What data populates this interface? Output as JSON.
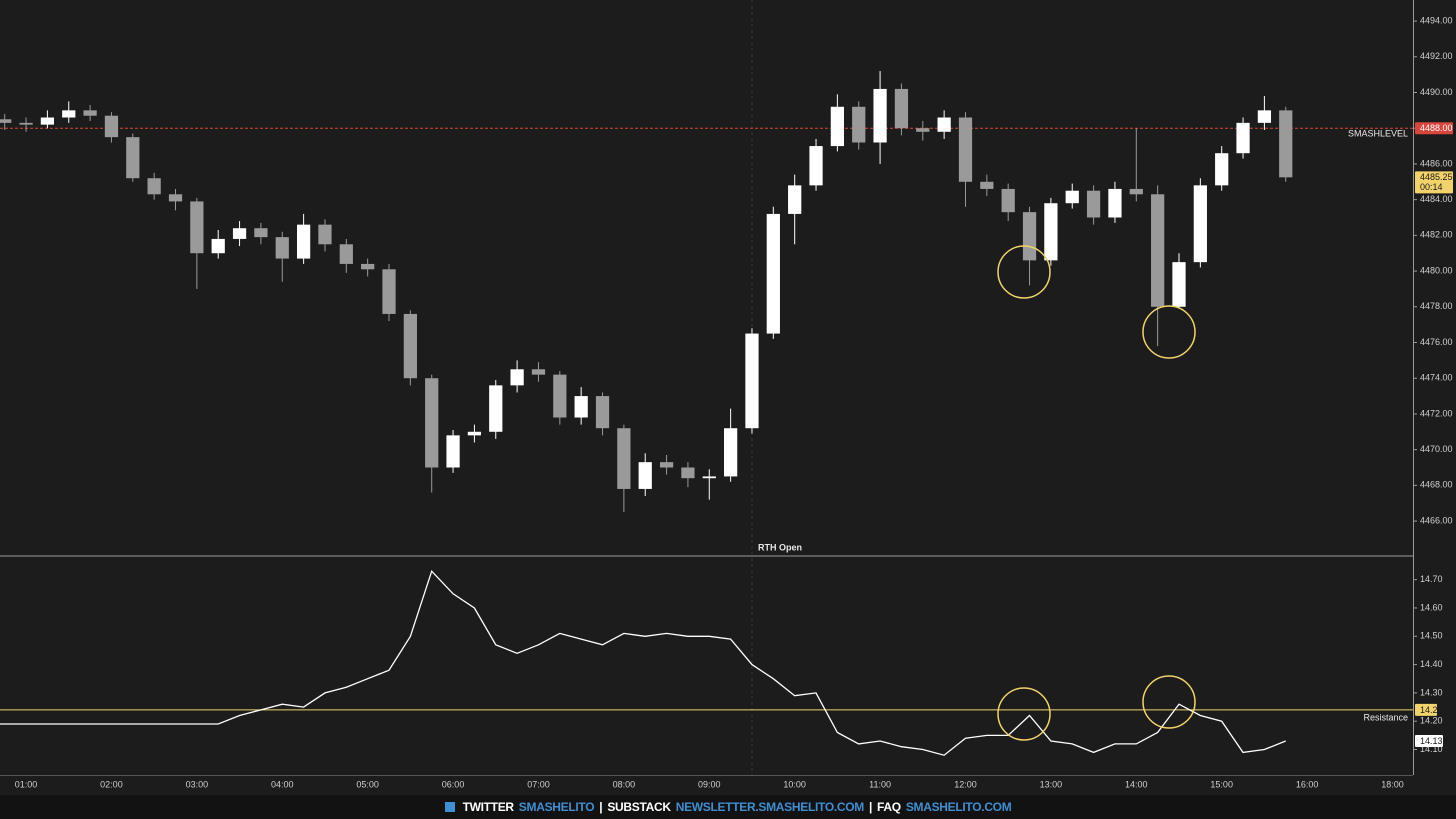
{
  "chart_data": [
    {
      "type": "candlestick",
      "grid": false,
      "up_color": "#ffffff",
      "down_color": "#9a9a9a",
      "x": [
        0.75,
        1,
        1.25,
        1.5,
        1.75,
        2,
        2.25,
        2.5,
        2.75,
        3,
        3.25,
        3.5,
        3.75,
        4,
        4.25,
        4.5,
        4.75,
        5,
        5.25,
        5.5,
        5.75,
        6,
        6.25,
        6.5,
        6.75,
        7,
        7.25,
        7.5,
        7.75,
        8,
        8.25,
        8.5,
        8.75,
        9,
        9.25,
        9.5,
        9.75,
        10,
        10.25,
        10.5,
        10.75,
        11,
        11.25,
        11.5,
        11.75,
        12,
        12.25,
        12.5,
        12.75,
        13,
        13.25,
        13.5,
        13.75,
        14,
        14.25,
        14.5,
        14.75,
        15,
        15.25,
        15.5,
        15.75
      ],
      "open": [
        4488.5,
        4488.3,
        4488.2,
        4488.6,
        4489.0,
        4488.7,
        4487.5,
        4485.2,
        4484.3,
        4483.9,
        4481.0,
        4481.8,
        4482.4,
        4481.9,
        4480.7,
        4482.6,
        4481.5,
        4480.4,
        4480.1,
        4477.6,
        4474.0,
        4469.0,
        4470.8,
        4471.0,
        4473.6,
        4474.5,
        4474.2,
        4471.8,
        4473.0,
        4471.2,
        4467.8,
        4469.3,
        4469.0,
        4468.4,
        4468.5,
        4471.2,
        4476.5,
        4483.2,
        4484.8,
        4487.0,
        4489.2,
        4487.2,
        4490.2,
        4488.0,
        4487.8,
        4488.6,
        4485.0,
        4484.6,
        4483.3,
        4480.6,
        4483.8,
        4484.5,
        4483.0,
        4484.6,
        4484.3,
        4478.0,
        4480.5,
        4484.8,
        4486.6,
        4488.3,
        4489.0
      ],
      "high": [
        4488.8,
        4488.6,
        4489.0,
        4489.5,
        4489.3,
        4488.9,
        4487.7,
        4485.5,
        4484.6,
        4484.1,
        4482.3,
        4482.8,
        4482.7,
        4482.2,
        4483.2,
        4482.9,
        4481.8,
        4480.7,
        4480.4,
        4477.8,
        4474.2,
        4471.1,
        4471.4,
        4473.9,
        4475.0,
        4474.9,
        4474.4,
        4473.5,
        4473.2,
        4471.4,
        4469.8,
        4469.7,
        4469.3,
        4468.9,
        4472.3,
        4476.8,
        4483.6,
        4485.4,
        4487.4,
        4489.9,
        4489.5,
        4491.2,
        4490.5,
        4488.4,
        4489.0,
        4488.9,
        4485.4,
        4484.9,
        4483.6,
        4484.1,
        4484.9,
        4484.8,
        4485.0,
        4488.0,
        4484.8,
        4481.0,
        4485.2,
        4487.0,
        4488.6,
        4489.8,
        4489.2
      ],
      "low": [
        4487.9,
        4487.8,
        4488.0,
        4488.3,
        4488.4,
        4487.2,
        4485.0,
        4484.0,
        4483.4,
        4479.0,
        4480.7,
        4481.4,
        4481.5,
        4479.4,
        4480.4,
        4481.1,
        4479.9,
        4479.7,
        4477.2,
        4473.6,
        4467.6,
        4468.7,
        4470.4,
        4470.6,
        4473.2,
        4473.8,
        4471.4,
        4471.4,
        4470.8,
        4466.5,
        4467.4,
        4468.6,
        4467.9,
        4467.2,
        4468.2,
        4470.9,
        4476.2,
        4481.5,
        4484.5,
        4486.7,
        4486.8,
        4486.0,
        4487.6,
        4487.3,
        4487.4,
        4483.6,
        4484.2,
        4482.8,
        4479.2,
        4480.3,
        4483.5,
        4482.6,
        4482.7,
        4483.9,
        4475.8,
        4477.9,
        4480.2,
        4484.5,
        4486.3,
        4487.9,
        4485.0
      ],
      "close": [
        4488.3,
        4488.2,
        4488.6,
        4489.0,
        4488.7,
        4487.5,
        4485.2,
        4484.3,
        4483.9,
        4481.0,
        4481.8,
        4482.4,
        4481.9,
        4480.7,
        4482.6,
        4481.5,
        4480.4,
        4480.1,
        4477.6,
        4474.0,
        4469.0,
        4470.8,
        4471.0,
        4473.6,
        4474.5,
        4474.2,
        4471.8,
        4473.0,
        4471.2,
        4467.8,
        4469.3,
        4469.0,
        4468.4,
        4468.5,
        4471.2,
        4476.5,
        4483.2,
        4484.8,
        4487.0,
        4489.2,
        4487.2,
        4490.2,
        4488.0,
        4487.8,
        4488.6,
        4485.0,
        4484.6,
        4483.3,
        4480.6,
        4483.8,
        4484.5,
        4483.0,
        4484.6,
        4484.3,
        4478.0,
        4480.5,
        4484.8,
        4486.6,
        4488.3,
        4489.0,
        4485.25
      ],
      "countdown": "00:14",
      "ylim": [
        4464.1,
        4495.18
      ],
      "yticks": [
        {
          "value": 4466,
          "label": "4466.00"
        },
        {
          "value": 4468,
          "label": "4468.00"
        },
        {
          "value": 4470,
          "label": "4470.00"
        },
        {
          "value": 4472,
          "label": "4472.00"
        },
        {
          "value": 4474,
          "label": "4474.00"
        },
        {
          "value": 4476,
          "label": "4476.00"
        },
        {
          "value": 4478,
          "label": "4478.00"
        },
        {
          "value": 4480,
          "label": "4480.00"
        },
        {
          "value": 4482,
          "label": "4482.00"
        },
        {
          "value": 4484,
          "label": "4484.00"
        },
        {
          "value": 4486,
          "label": "4486.00"
        },
        {
          "value": 4488,
          "label": "4488.00"
        },
        {
          "value": 4490,
          "label": "4490.00"
        },
        {
          "value": 4492,
          "label": "4492.00"
        },
        {
          "value": 4494,
          "label": "4494.00"
        }
      ],
      "level": {
        "name": "SMASHLEVEL",
        "value": 4488,
        "label": "4488.00",
        "color": "#d9463e"
      },
      "marker": {
        "x": 9.5,
        "label": "RTH Open"
      },
      "xlim": [
        0.695,
        18.24
      ],
      "xbreak": {
        "from": 16.5,
        "to": 17.5
      },
      "xticks": [
        {
          "value": 1,
          "label": "01:00"
        },
        {
          "value": 2,
          "label": "02:00"
        },
        {
          "value": 3,
          "label": "03:00"
        },
        {
          "value": 4,
          "label": "04:00"
        },
        {
          "value": 5,
          "label": "05:00"
        },
        {
          "value": 6,
          "label": "06:00"
        },
        {
          "value": 7,
          "label": "07:00"
        },
        {
          "value": 8,
          "label": "08:00"
        },
        {
          "value": 9,
          "label": "09:00"
        },
        {
          "value": 10,
          "label": "10:00"
        },
        {
          "value": 11,
          "label": "11:00"
        },
        {
          "value": 12,
          "label": "12:00"
        },
        {
          "value": 13,
          "label": "13:00"
        },
        {
          "value": 14,
          "label": "14:00"
        },
        {
          "value": 15,
          "label": "15:00"
        },
        {
          "value": 16,
          "label": "16:00"
        },
        {
          "value": 18,
          "label": "18:00"
        }
      ]
    },
    {
      "type": "line",
      "grid": false,
      "color": "#ffffff",
      "x": [
        0.75,
        1,
        1.25,
        1.5,
        1.75,
        2,
        2.25,
        2.5,
        2.75,
        3,
        3.25,
        3.5,
        3.75,
        4,
        4.25,
        4.5,
        4.75,
        5,
        5.25,
        5.5,
        5.75,
        6,
        6.25,
        6.5,
        6.75,
        7,
        7.25,
        7.5,
        7.75,
        8,
        8.25,
        8.5,
        8.75,
        9,
        9.25,
        9.5,
        9.75,
        10,
        10.25,
        10.5,
        10.75,
        11,
        11.25,
        11.5,
        11.75,
        12,
        12.25,
        12.5,
        12.75,
        13,
        13.25,
        13.5,
        13.75,
        14,
        14.25,
        14.5,
        14.75,
        15,
        15.25,
        15.5,
        15.75
      ],
      "values": [
        14.19,
        14.19,
        14.19,
        14.19,
        14.19,
        14.19,
        14.19,
        14.19,
        14.19,
        14.19,
        14.19,
        14.22,
        14.24,
        14.26,
        14.25,
        14.3,
        14.32,
        14.35,
        14.38,
        14.5,
        14.73,
        14.65,
        14.6,
        14.47,
        14.44,
        14.47,
        14.51,
        14.49,
        14.47,
        14.51,
        14.5,
        14.51,
        14.5,
        14.5,
        14.49,
        14.4,
        14.35,
        14.29,
        14.3,
        14.16,
        14.12,
        14.13,
        14.11,
        14.1,
        14.08,
        14.14,
        14.15,
        14.15,
        14.22,
        14.13,
        14.12,
        14.09,
        14.12,
        14.12,
        14.16,
        14.26,
        14.22,
        14.2,
        14.09,
        14.1,
        14.13
      ],
      "ylim": [
        14.01,
        14.78
      ],
      "yticks": [
        {
          "value": 14.1,
          "label": "14.10"
        },
        {
          "value": 14.2,
          "label": "14.20"
        },
        {
          "value": 14.3,
          "label": "14.30"
        },
        {
          "value": 14.4,
          "label": "14.40"
        },
        {
          "value": 14.5,
          "label": "14.50"
        },
        {
          "value": 14.6,
          "label": "14.60"
        },
        {
          "value": 14.7,
          "label": "14.70"
        }
      ],
      "level": {
        "name": "Resistance",
        "value": 14.24,
        "color": "#f2d36b"
      }
    }
  ],
  "footer": {
    "items": [
      "TWITTER",
      "SMASHELITO",
      "|",
      "SUBSTACK",
      "NEWSLETTER.SMASHELITO.COM",
      "|",
      "FAQ",
      "SMASHELITO.COM"
    ]
  }
}
